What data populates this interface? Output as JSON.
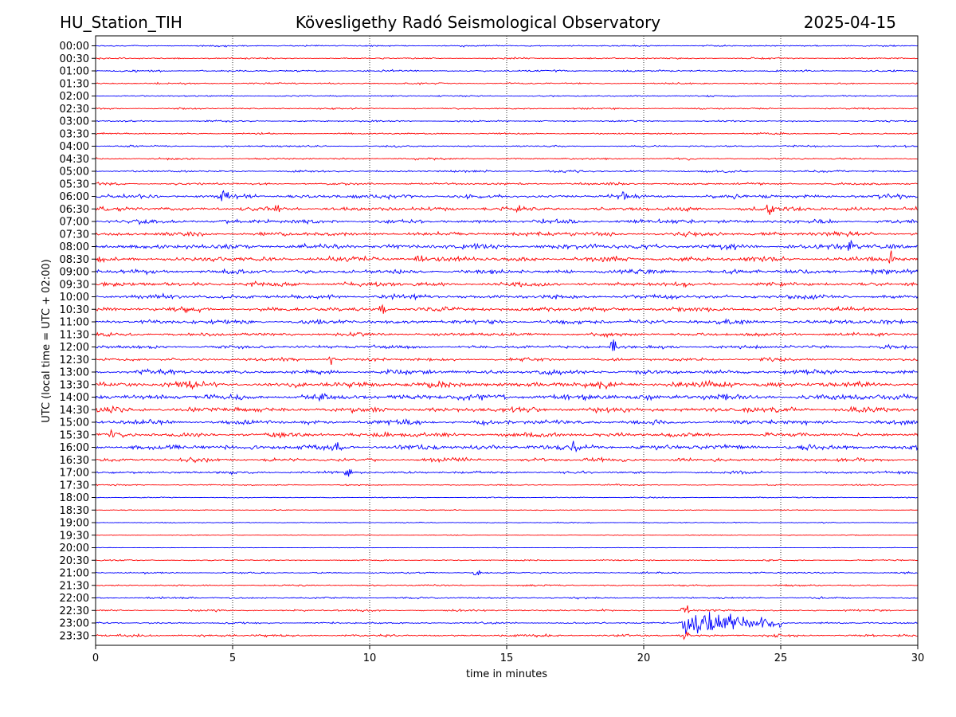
{
  "header": {
    "station": "HU_Station_TIH",
    "title": "Kövesligethy Radó Seismological Observatory",
    "date": "2025-04-15"
  },
  "chart_data": {
    "type": "line",
    "title": "Kövesligethy Radó Seismological Observatory",
    "xlabel": "time in minutes",
    "ylabel": "UTC (local time = UTC + 02:00)",
    "xlim": [
      0,
      30
    ],
    "xticks": [
      "0",
      "5",
      "10",
      "15",
      "20",
      "25",
      "30"
    ],
    "grid": "vertical dotted at each x tick",
    "trace_colors": [
      "#0000ff",
      "#ff0000"
    ],
    "rows": [
      "00:00",
      "00:30",
      "01:00",
      "01:30",
      "02:00",
      "02:30",
      "03:00",
      "03:30",
      "04:00",
      "04:30",
      "05:00",
      "05:30",
      "06:00",
      "06:30",
      "07:00",
      "07:30",
      "08:00",
      "08:30",
      "09:00",
      "09:30",
      "10:00",
      "10:30",
      "11:00",
      "11:30",
      "12:00",
      "12:30",
      "13:00",
      "13:30",
      "14:00",
      "14:30",
      "15:00",
      "15:30",
      "16:00",
      "16:30",
      "17:00",
      "17:30",
      "18:00",
      "18:30",
      "19:00",
      "19:30",
      "20:00",
      "20:30",
      "21:00",
      "21:30",
      "22:00",
      "22:30",
      "23:00",
      "23:30"
    ],
    "noise_level": [
      0.3,
      0.3,
      0.35,
      0.3,
      0.3,
      0.3,
      0.3,
      0.3,
      0.35,
      0.35,
      0.4,
      0.45,
      0.75,
      0.8,
      0.8,
      0.8,
      0.95,
      0.9,
      0.85,
      0.8,
      0.8,
      0.85,
      0.8,
      0.65,
      0.65,
      0.6,
      0.85,
      1.1,
      1.1,
      0.95,
      0.85,
      0.8,
      0.95,
      0.7,
      0.5,
      0.25,
      0.2,
      0.15,
      0.18,
      0.15,
      0.1,
      0.25,
      0.3,
      0.3,
      0.35,
      0.35,
      0.35,
      0.45
    ],
    "events": [
      {
        "row": "06:00",
        "minute": 4.7,
        "amplitude": 1.6
      },
      {
        "row": "06:00",
        "minute": 19.2,
        "amplitude": 1.5
      },
      {
        "row": "06:30",
        "minute": 6.6,
        "amplitude": 1.4
      },
      {
        "row": "06:30",
        "minute": 24.6,
        "amplitude": 1.6
      },
      {
        "row": "08:00",
        "minute": 27.5,
        "amplitude": 1.6
      },
      {
        "row": "08:30",
        "minute": 11.8,
        "amplitude": 1.5
      },
      {
        "row": "08:30",
        "minute": 29.0,
        "amplitude": 1.7
      },
      {
        "row": "10:30",
        "minute": 10.5,
        "amplitude": 1.6
      },
      {
        "row": "12:00",
        "minute": 18.9,
        "amplitude": 2.5
      },
      {
        "row": "12:30",
        "minute": 8.6,
        "amplitude": 1.5
      },
      {
        "row": "13:30",
        "minute": 3.4,
        "amplitude": 1.6
      },
      {
        "row": "15:30",
        "minute": 0.6,
        "amplitude": 1.4
      },
      {
        "row": "16:00",
        "minute": 8.8,
        "amplitude": 2.0
      },
      {
        "row": "16:00",
        "minute": 17.5,
        "amplitude": 1.8
      },
      {
        "row": "17:00",
        "minute": 9.2,
        "amplitude": 1.6
      },
      {
        "row": "21:00",
        "minute": 13.9,
        "amplitude": 1.0
      },
      {
        "row": "22:30",
        "minute": 21.5,
        "amplitude": 2.6
      },
      {
        "row": "23:00",
        "minute": 21.5,
        "amplitude": 2.6
      },
      {
        "row": "23:30",
        "minute": 21.5,
        "amplitude": 2.0
      }
    ],
    "earthquake": {
      "row": "23:00",
      "onset_minute": 21.5,
      "end_minute": 25.0,
      "amplitude": 1.7
    }
  }
}
